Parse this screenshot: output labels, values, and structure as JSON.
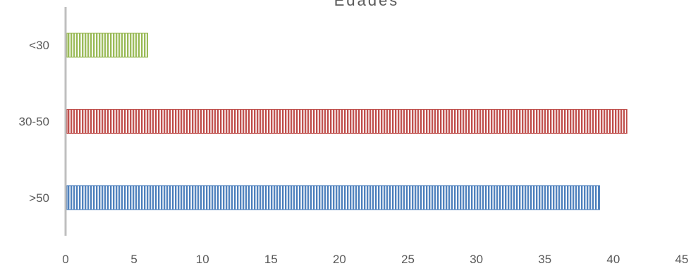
{
  "chart_data": {
    "type": "bar",
    "orientation": "horizontal",
    "title": "Edades",
    "xlabel": "",
    "ylabel": "",
    "categories": [
      "<30",
      "30-50",
      ">50"
    ],
    "values": [
      6,
      41,
      39
    ],
    "xlim": [
      0,
      45
    ],
    "xticks": [
      0,
      5,
      10,
      15,
      20,
      25,
      30,
      35,
      40,
      45
    ],
    "grid": false,
    "legend": "none",
    "bar_fill": "vertical-line pattern",
    "colors": {
      "<30": "#9bbb59",
      "30-50": "#c0504d",
      ">50": "#4f81bd"
    },
    "axis_color": "#bfbfbf",
    "text_color": "#595959"
  }
}
